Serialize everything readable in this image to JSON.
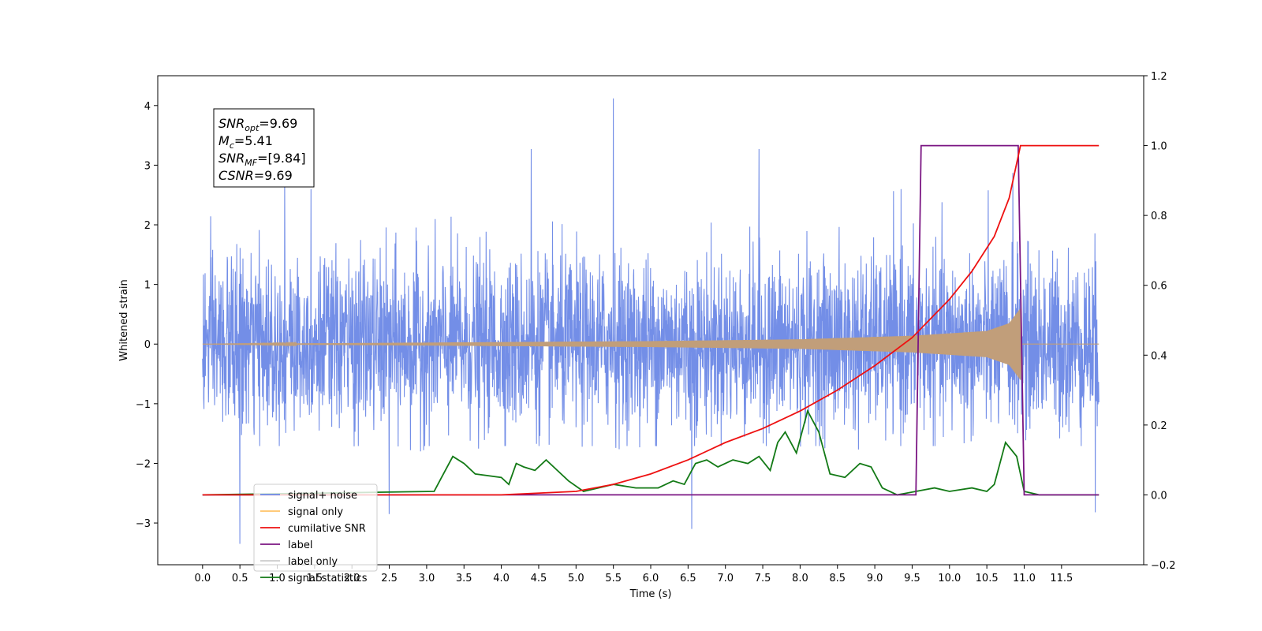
{
  "chart_data": {
    "type": "line",
    "xlabel": "Time (s)",
    "ylabel": "Whitened strain",
    "xlim": [
      -0.6,
      12.6
    ],
    "ylim": [
      -3.7,
      4.5
    ],
    "y2lim": [
      -0.2,
      1.2
    ],
    "x_ticks": [
      0.0,
      0.5,
      1.0,
      1.5,
      2.0,
      2.5,
      3.0,
      3.5,
      4.0,
      4.5,
      5.0,
      5.5,
      6.0,
      6.5,
      7.0,
      7.5,
      8.0,
      8.5,
      9.0,
      9.5,
      10.0,
      10.5,
      11.0,
      11.5
    ],
    "x_tick_labels": [
      "0.0",
      "0.5",
      "1.0",
      "1.5",
      "2.0",
      "2.5",
      "3.0",
      "3.5",
      "4.0",
      "4.5",
      "5.0",
      "5.5",
      "6.0",
      "6.5",
      "7.0",
      "7.5",
      "8.0",
      "8.5",
      "9.0",
      "9.5",
      "10.0",
      "10.5",
      "11.0",
      "11.5"
    ],
    "y_ticks": [
      -3,
      -2,
      -1,
      0,
      1,
      2,
      3,
      4
    ],
    "y_tick_labels": [
      "−3",
      "−2",
      "−1",
      "0",
      "1",
      "2",
      "3",
      "4"
    ],
    "y2_ticks": [
      -0.2,
      0.0,
      0.2,
      0.4,
      0.6,
      0.8,
      1.0,
      1.2
    ],
    "y2_tick_labels": [
      "−0.2",
      "0.0",
      "0.2",
      "0.4",
      "0.6",
      "0.8",
      "1.0",
      "1.2"
    ],
    "legend_position": "lower-left",
    "series": [
      {
        "name": "signal+ noise",
        "axis": "left",
        "color": "#6b88e6",
        "noise_x_range": [
          0.0,
          12.0
        ],
        "noise_envelope": [
          -1.8,
          2.6
        ],
        "spikes": [
          [
            0.5,
            -3.35
          ],
          [
            1.1,
            2.8
          ],
          [
            1.45,
            2.6
          ],
          [
            2.5,
            -2.85
          ],
          [
            4.4,
            3.27
          ],
          [
            5.5,
            4.12
          ],
          [
            6.55,
            -3.1
          ],
          [
            7.45,
            3.27
          ],
          [
            9.35,
            2.6
          ],
          [
            10.85,
            2.87
          ],
          [
            11.95,
            -2.82
          ]
        ]
      },
      {
        "name": "signal only",
        "axis": "left",
        "color": "#c19e7a",
        "chirp_x_range": [
          0.0,
          10.95
        ],
        "chirp_amplitude": [
          [
            0.0,
            0.0
          ],
          [
            6.0,
            0.05
          ],
          [
            8.0,
            0.08
          ],
          [
            9.5,
            0.14
          ],
          [
            10.5,
            0.22
          ],
          [
            10.8,
            0.35
          ],
          [
            10.95,
            0.6
          ]
        ]
      },
      {
        "name": "cumilative SNR",
        "axis": "right",
        "color": "#ee1111",
        "x": [
          0.0,
          3.0,
          4.0,
          5.0,
          5.5,
          6.0,
          6.5,
          7.0,
          7.5,
          8.0,
          8.5,
          9.0,
          9.5,
          10.0,
          10.3,
          10.6,
          10.8,
          10.95,
          11.0,
          12.0
        ],
        "y": [
          0.0,
          0.0,
          0.0,
          0.01,
          0.03,
          0.06,
          0.1,
          0.15,
          0.19,
          0.24,
          0.3,
          0.37,
          0.45,
          0.56,
          0.64,
          0.74,
          0.85,
          1.0,
          1.0,
          1.0
        ]
      },
      {
        "name": "label",
        "axis": "right",
        "color": "#7b1683",
        "x": [
          0.0,
          9.55,
          9.62,
          10.92,
          11.0,
          12.0
        ],
        "y": [
          0.0,
          0.0,
          1.0,
          1.0,
          0.0,
          0.0
        ]
      },
      {
        "name": "label only",
        "axis": "right",
        "color": "#cccccc"
      },
      {
        "name": "signal statistics",
        "axis": "right",
        "color": "#137a16",
        "x": [
          0.0,
          3.1,
          3.2,
          3.35,
          3.5,
          3.65,
          4.0,
          4.1,
          4.2,
          4.3,
          4.45,
          4.6,
          4.75,
          4.9,
          5.1,
          5.3,
          5.5,
          5.8,
          6.1,
          6.3,
          6.45,
          6.6,
          6.75,
          6.9,
          7.1,
          7.3,
          7.45,
          7.6,
          7.7,
          7.8,
          7.95,
          8.1,
          8.25,
          8.4,
          8.6,
          8.8,
          8.95,
          9.1,
          9.3,
          9.55,
          9.8,
          10.0,
          10.3,
          10.5,
          10.6,
          10.75,
          10.9,
          11.0,
          11.2,
          12.0
        ],
        "y": [
          0.0,
          0.01,
          0.05,
          0.11,
          0.09,
          0.06,
          0.05,
          0.03,
          0.09,
          0.08,
          0.07,
          0.1,
          0.07,
          0.04,
          0.01,
          0.02,
          0.03,
          0.02,
          0.02,
          0.04,
          0.03,
          0.09,
          0.1,
          0.08,
          0.1,
          0.09,
          0.11,
          0.07,
          0.15,
          0.18,
          0.12,
          0.24,
          0.18,
          0.06,
          0.05,
          0.09,
          0.08,
          0.02,
          0.0,
          0.01,
          0.02,
          0.01,
          0.02,
          0.01,
          0.03,
          0.15,
          0.11,
          0.01,
          0.0,
          0.0
        ]
      }
    ],
    "annotation": {
      "lines": [
        {
          "base": "SNR",
          "sub": "opt",
          "rest": "=9.69"
        },
        {
          "base": "M",
          "sub": "c",
          "rest": "=5.41"
        },
        {
          "base": "SNR",
          "sub": "MF",
          "rest": "=[9.84]"
        },
        {
          "base": "CSNR",
          "sub": "",
          "rest": "=9.69"
        }
      ]
    }
  }
}
